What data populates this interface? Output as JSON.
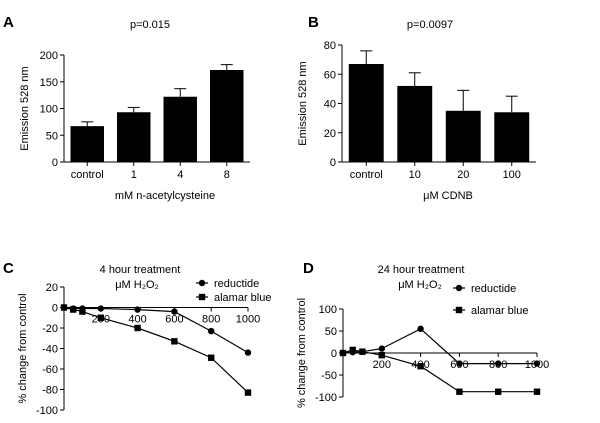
{
  "colors": {
    "ink": "#000000",
    "background": "#ffffff"
  },
  "chart_data": [
    {
      "panel": "A",
      "type": "bar",
      "title": "p=0.015",
      "ylabel": "Emission 528 nm",
      "xlabel": "mM n-acetylcysteine",
      "categories": [
        "control",
        "1",
        "4",
        "8"
      ],
      "values": [
        67,
        93,
        122,
        172
      ],
      "errors": [
        8,
        9,
        15,
        10
      ],
      "ylim": [
        0,
        200
      ],
      "yticks": [
        "0",
        "50",
        "100",
        "150",
        "200"
      ]
    },
    {
      "panel": "B",
      "type": "bar",
      "title": "p=0.0097",
      "ylabel": "Emission 528 nm",
      "xlabel": "μM CDNB",
      "categories": [
        "control",
        "10",
        "20",
        "100"
      ],
      "values": [
        67,
        52,
        35,
        34
      ],
      "errors": [
        9,
        9,
        14,
        11
      ],
      "ylim": [
        0,
        80
      ],
      "yticks": [
        "0",
        "20",
        "40",
        "60",
        "80"
      ]
    },
    {
      "panel": "C",
      "type": "line",
      "title": "4 hour treatment",
      "subtitle": "μM H₂O₂",
      "ylabel": "% change from control",
      "xlim": [
        0,
        1000
      ],
      "ylim": [
        -100,
        20
      ],
      "xticks": [
        "200",
        "400",
        "600",
        "800",
        "1000"
      ],
      "yticks": [
        "20",
        "0",
        "-20",
        "-40",
        "-60",
        "-80",
        "-100"
      ],
      "legend": "top-right",
      "series": [
        {
          "name": "reductide",
          "marker": "circle",
          "x": [
            0,
            50,
            100,
            200,
            400,
            600,
            800,
            1000
          ],
          "y": [
            0,
            -1,
            -1,
            -1,
            -2,
            -4,
            -23,
            -44
          ]
        },
        {
          "name": "alamar blue",
          "marker": "square",
          "x": [
            0,
            50,
            100,
            200,
            400,
            600,
            800,
            1000
          ],
          "y": [
            0,
            -2,
            -4,
            -10,
            -20,
            -33,
            -49,
            -83
          ]
        }
      ]
    },
    {
      "panel": "D",
      "type": "line",
      "title": "24 hour treatment",
      "subtitle": "μM H₂O₂",
      "ylabel": "% change from control",
      "xlim": [
        0,
        1000
      ],
      "ylim": [
        -100,
        100
      ],
      "xticks": [
        "200",
        "400",
        "600",
        "800",
        "1000"
      ],
      "yticks": [
        "100",
        "50",
        "0",
        "-50",
        "-100"
      ],
      "legend": "top-right",
      "series": [
        {
          "name": "reductide",
          "marker": "circle",
          "x": [
            0,
            50,
            100,
            200,
            400,
            600,
            800,
            1000
          ],
          "y": [
            0,
            2,
            3,
            10,
            55,
            -24,
            -24,
            -24
          ]
        },
        {
          "name": "alamar blue",
          "marker": "square",
          "x": [
            0,
            50,
            100,
            200,
            400,
            600,
            800,
            1000
          ],
          "y": [
            0,
            7,
            3,
            -5,
            -30,
            -88,
            -88,
            -88
          ]
        }
      ]
    }
  ]
}
